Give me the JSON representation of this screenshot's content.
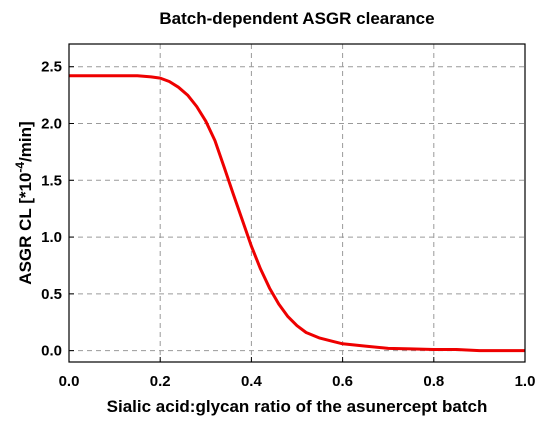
{
  "chart_data": {
    "type": "line",
    "title": "Batch-dependent ASGR clearance",
    "xlabel": "Sialic acid:glycan ratio of the asunercept batch",
    "ylabel_prefix": "ASGR CL [*10",
    "ylabel_exp": "-4",
    "ylabel_suffix": "/min]",
    "xlim": [
      0,
      1
    ],
    "ylim": [
      -0.1,
      2.7
    ],
    "grid": true,
    "x_ticks": [
      0,
      0.2,
      0.4,
      0.6,
      0.8,
      1.0
    ],
    "x_tick_labels": [
      "0.0",
      "0.2",
      "0.4",
      "0.6",
      "0.8",
      "1.0"
    ],
    "y_ticks": [
      0,
      0.5,
      1.0,
      1.5,
      2.0,
      2.5
    ],
    "y_tick_labels": [
      "0.0",
      "0.5",
      "1.0",
      "1.5",
      "2.0",
      "2.5"
    ],
    "series": [
      {
        "color": "#ee0000",
        "x": [
          0.0,
          0.05,
          0.1,
          0.15,
          0.18,
          0.2,
          0.22,
          0.24,
          0.26,
          0.28,
          0.3,
          0.32,
          0.34,
          0.36,
          0.38,
          0.4,
          0.42,
          0.44,
          0.46,
          0.48,
          0.5,
          0.52,
          0.55,
          0.58,
          0.6,
          0.65,
          0.7,
          0.75,
          0.8,
          0.85,
          0.9,
          1.0
        ],
        "y": [
          2.42,
          2.42,
          2.42,
          2.42,
          2.41,
          2.4,
          2.37,
          2.32,
          2.25,
          2.15,
          2.02,
          1.85,
          1.62,
          1.38,
          1.15,
          0.92,
          0.72,
          0.55,
          0.41,
          0.3,
          0.22,
          0.16,
          0.11,
          0.08,
          0.06,
          0.04,
          0.02,
          0.015,
          0.01,
          0.01,
          0.0,
          0.0
        ]
      }
    ]
  }
}
